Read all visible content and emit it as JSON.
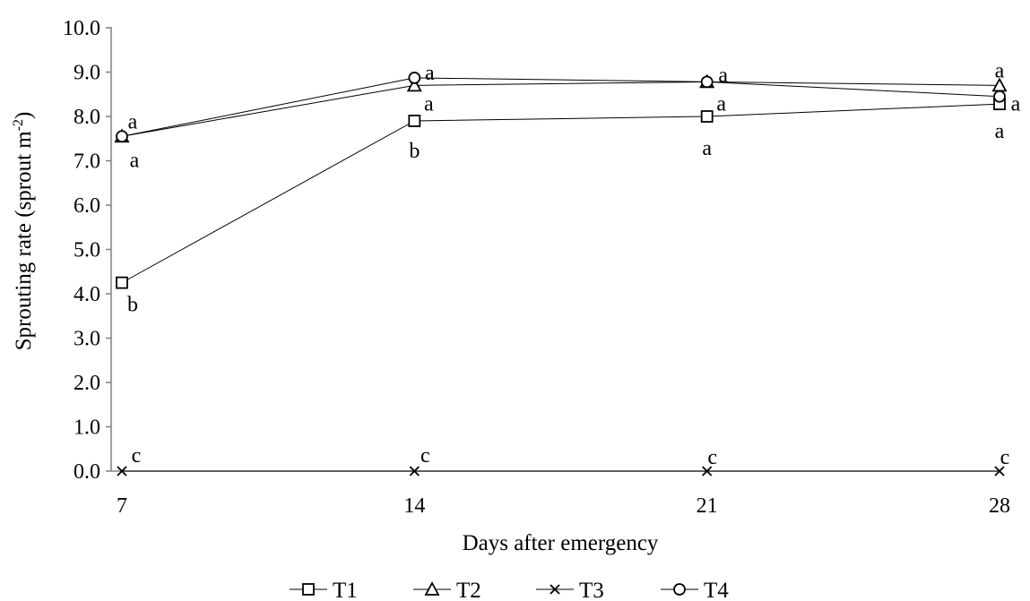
{
  "chart_data": {
    "type": "line",
    "title": "",
    "xlabel": "Days after emergency",
    "ylabel_main": "Sprouting rate (sprout m",
    "ylabel_sup": "-2",
    "ylabel_end": ")",
    "x": [
      7,
      14,
      21,
      28
    ],
    "x_tick_labels": [
      "7",
      "14",
      "21",
      "28"
    ],
    "ylim": [
      0,
      10
    ],
    "y_ticks": [
      0,
      1,
      2,
      3,
      4,
      5,
      6,
      7,
      8,
      9,
      10
    ],
    "y_tick_labels": [
      "0.0",
      "1.0",
      "2.0",
      "3.0",
      "4.0",
      "5.0",
      "6.0",
      "7.0",
      "8.0",
      "9.0",
      "10.0"
    ],
    "grid": false,
    "legend_position": "bottom",
    "series": [
      {
        "name": "T1",
        "marker": "square",
        "values": [
          4.25,
          7.9,
          8.0,
          8.28
        ],
        "labels": [
          "b",
          "b",
          "a",
          "a"
        ]
      },
      {
        "name": "T2",
        "marker": "triangle",
        "values": [
          7.55,
          8.7,
          8.78,
          8.7
        ],
        "labels": [
          "a",
          "a",
          "a",
          "a"
        ]
      },
      {
        "name": "T3",
        "marker": "x",
        "values": [
          0.0,
          0.0,
          0.0,
          0.0
        ],
        "labels": [
          "c",
          "c",
          "c",
          "c"
        ]
      },
      {
        "name": "T4",
        "marker": "circle",
        "values": [
          7.55,
          8.87,
          8.78,
          8.45
        ],
        "labels": [
          "a",
          "a",
          "a",
          "a"
        ]
      }
    ]
  }
}
